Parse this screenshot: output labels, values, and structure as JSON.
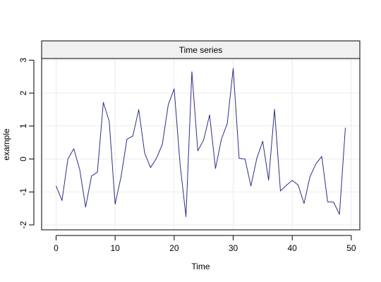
{
  "chart_data": {
    "type": "line",
    "title": "Time series",
    "xlabel": "Time",
    "ylabel": "example",
    "xlim": [
      -2.45,
      51.45
    ],
    "ylim": [
      -2.15,
      3.05
    ],
    "x_ticks": [
      0,
      10,
      20,
      30,
      40,
      50
    ],
    "y_ticks": [
      -2,
      -1,
      0,
      1,
      2,
      3
    ],
    "grid": true,
    "colors": {
      "line": "#2d2d8a",
      "strip": "#f0f0f0",
      "grid": "#ebebeb"
    },
    "series": [
      {
        "x": [
          0,
          1,
          2,
          3,
          4,
          5,
          6,
          7,
          8,
          9,
          10,
          11,
          12,
          13,
          14,
          15,
          16,
          17,
          18,
          19,
          20,
          21,
          22,
          23,
          24,
          25,
          26,
          27,
          28,
          29,
          30,
          31,
          32,
          33,
          34,
          35,
          36,
          37,
          38,
          39,
          40,
          41,
          42,
          43,
          44,
          45,
          46,
          47,
          48,
          49
        ],
        "values": [
          -0.82,
          -1.26,
          0.0,
          0.31,
          -0.32,
          -1.46,
          -0.52,
          -0.4,
          1.72,
          1.14,
          -1.37,
          -0.54,
          0.6,
          0.7,
          1.5,
          0.18,
          -0.26,
          0.02,
          0.45,
          1.65,
          2.13,
          -0.15,
          -1.75,
          2.65,
          0.25,
          0.58,
          1.34,
          -0.29,
          0.6,
          1.08,
          2.75,
          0.02,
          0.0,
          -0.82,
          0.02,
          0.54,
          -0.64,
          1.51,
          -0.97,
          -0.8,
          -0.65,
          -0.79,
          -1.35,
          -0.54,
          -0.15,
          0.08,
          -1.3,
          -1.31,
          -1.68,
          0.95
        ]
      }
    ]
  }
}
